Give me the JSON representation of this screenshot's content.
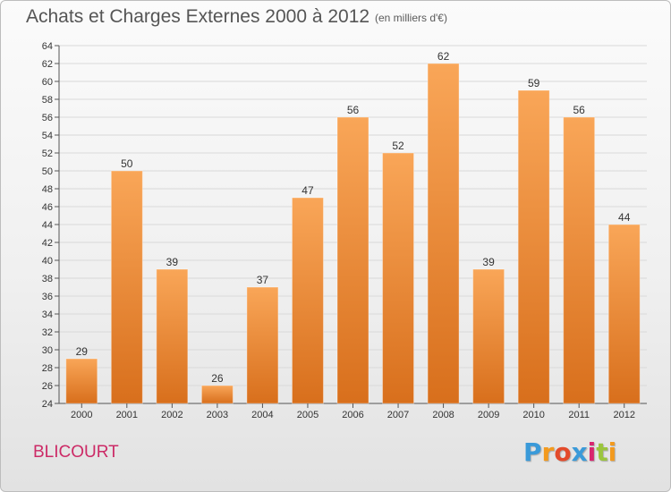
{
  "title": "Achats et Charges Externes 2000 à 2012",
  "subtitle": "(en milliers d'€)",
  "commune": "BLICOURT",
  "logo": {
    "text": "Proxiti",
    "letters": [
      {
        "ch": "P",
        "color": "#3a9ad9"
      },
      {
        "ch": "r",
        "color": "#f39a1e"
      },
      {
        "ch": "o",
        "color": "#e34b2b"
      },
      {
        "ch": "x",
        "color": "#3a9ad9"
      },
      {
        "ch": "i",
        "color": "#d8256f"
      },
      {
        "ch": "t",
        "color": "#9bc53d"
      },
      {
        "ch": "i",
        "color": "#f39a1e"
      }
    ]
  },
  "colors": {
    "bar_light": "#f9a658",
    "bar_dark": "#d86f1c",
    "grid": "#d9d9d9",
    "axis": "#555555"
  },
  "chart_data": {
    "type": "bar",
    "title": "Achats et Charges Externes 2000 à 2012",
    "subtitle": "(en milliers d'€)",
    "xlabel": "",
    "ylabel": "",
    "categories": [
      "2000",
      "2001",
      "2002",
      "2003",
      "2004",
      "2005",
      "2006",
      "2007",
      "2008",
      "2009",
      "2010",
      "2011",
      "2012"
    ],
    "values": [
      29,
      50,
      39,
      26,
      37,
      47,
      56,
      52,
      62,
      39,
      59,
      56,
      44
    ],
    "ylim": [
      24,
      64
    ],
    "yticks": [
      24,
      26,
      28,
      30,
      32,
      34,
      36,
      38,
      40,
      42,
      44,
      46,
      48,
      50,
      52,
      54,
      56,
      58,
      60,
      62,
      64
    ],
    "grid": true,
    "data_labels": true
  }
}
